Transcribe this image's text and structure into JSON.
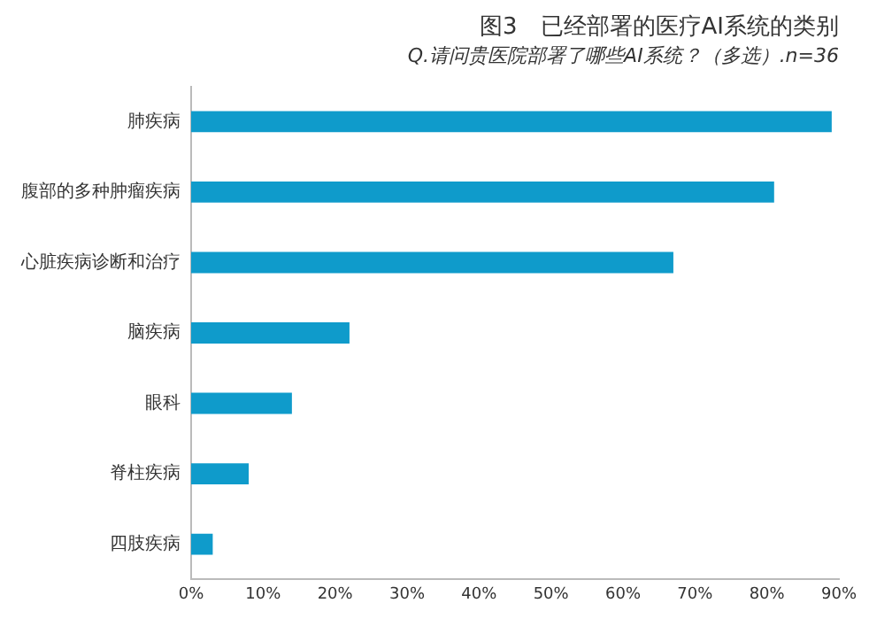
{
  "chart_data": {
    "type": "bar",
    "orientation": "horizontal",
    "title": "图3　已经部署的医疗AI系统的类别",
    "subtitle": "Q.请问贵医院部署了哪些AI系统？（多选）.n=36",
    "categories": [
      "肺疾病",
      "腹部的多种肿瘤疾病",
      "心脏疾病诊断和治疗",
      "脑疾病",
      "眼科",
      "脊柱疾病",
      "四肢疾病"
    ],
    "values": [
      89,
      81,
      67,
      22,
      14,
      8,
      3
    ],
    "color": "#0f9bcb",
    "xlim": [
      0,
      90
    ],
    "xticks": [
      {
        "value": 0,
        "label": "0%"
      },
      {
        "value": 10,
        "label": "10%"
      },
      {
        "value": 20,
        "label": "20%"
      },
      {
        "value": 30,
        "label": "30%"
      },
      {
        "value": 40,
        "label": "40%"
      },
      {
        "value": 50,
        "label": "50%"
      },
      {
        "value": 60,
        "label": "60%"
      },
      {
        "value": 70,
        "label": "70%"
      },
      {
        "value": 80,
        "label": "80%"
      },
      {
        "value": 90,
        "label": "90%"
      }
    ],
    "grid": false,
    "legend": false
  }
}
